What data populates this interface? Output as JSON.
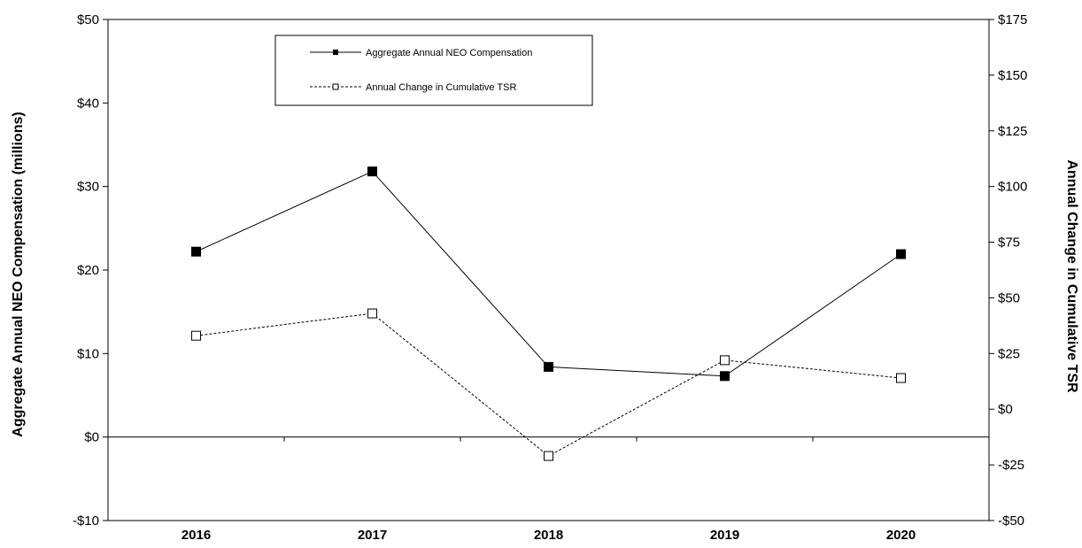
{
  "chart_data": {
    "type": "line",
    "categories": [
      "2016",
      "2017",
      "2018",
      "2019",
      "2020"
    ],
    "y_left": {
      "label": "Aggregate Annual NEO Compensation (millions)",
      "lim": [
        -10,
        50
      ],
      "ticks": [
        -10,
        0,
        10,
        20,
        30,
        40,
        50
      ],
      "tick_labels": [
        "-$10",
        "$0",
        "$10",
        "$20",
        "$30",
        "$40",
        "$50"
      ]
    },
    "y_right": {
      "label": "Annual Change in Cumulative TSR",
      "lim": [
        -50,
        175
      ],
      "ticks": [
        -50,
        -25,
        0,
        25,
        50,
        75,
        100,
        125,
        150,
        175
      ],
      "tick_labels": [
        "-$50",
        "-$25",
        "$0",
        "$25",
        "$50",
        "$75",
        "$100",
        "$125",
        "$150",
        "$175"
      ]
    },
    "series": [
      {
        "name": "Aggregate Annual NEO Compensation",
        "axis": "left",
        "style": "solid",
        "marker": "filled-square",
        "values": [
          22.2,
          31.8,
          8.4,
          7.3,
          21.9
        ]
      },
      {
        "name": "Annual Change in Cumulative TSR",
        "axis": "right",
        "style": "dashed",
        "marker": "open-square",
        "values": [
          33,
          43,
          -21,
          22,
          14
        ]
      }
    ],
    "legend_position": "top-left",
    "grid": false,
    "colors": {
      "line": "#000000",
      "background": "#ffffff"
    }
  }
}
